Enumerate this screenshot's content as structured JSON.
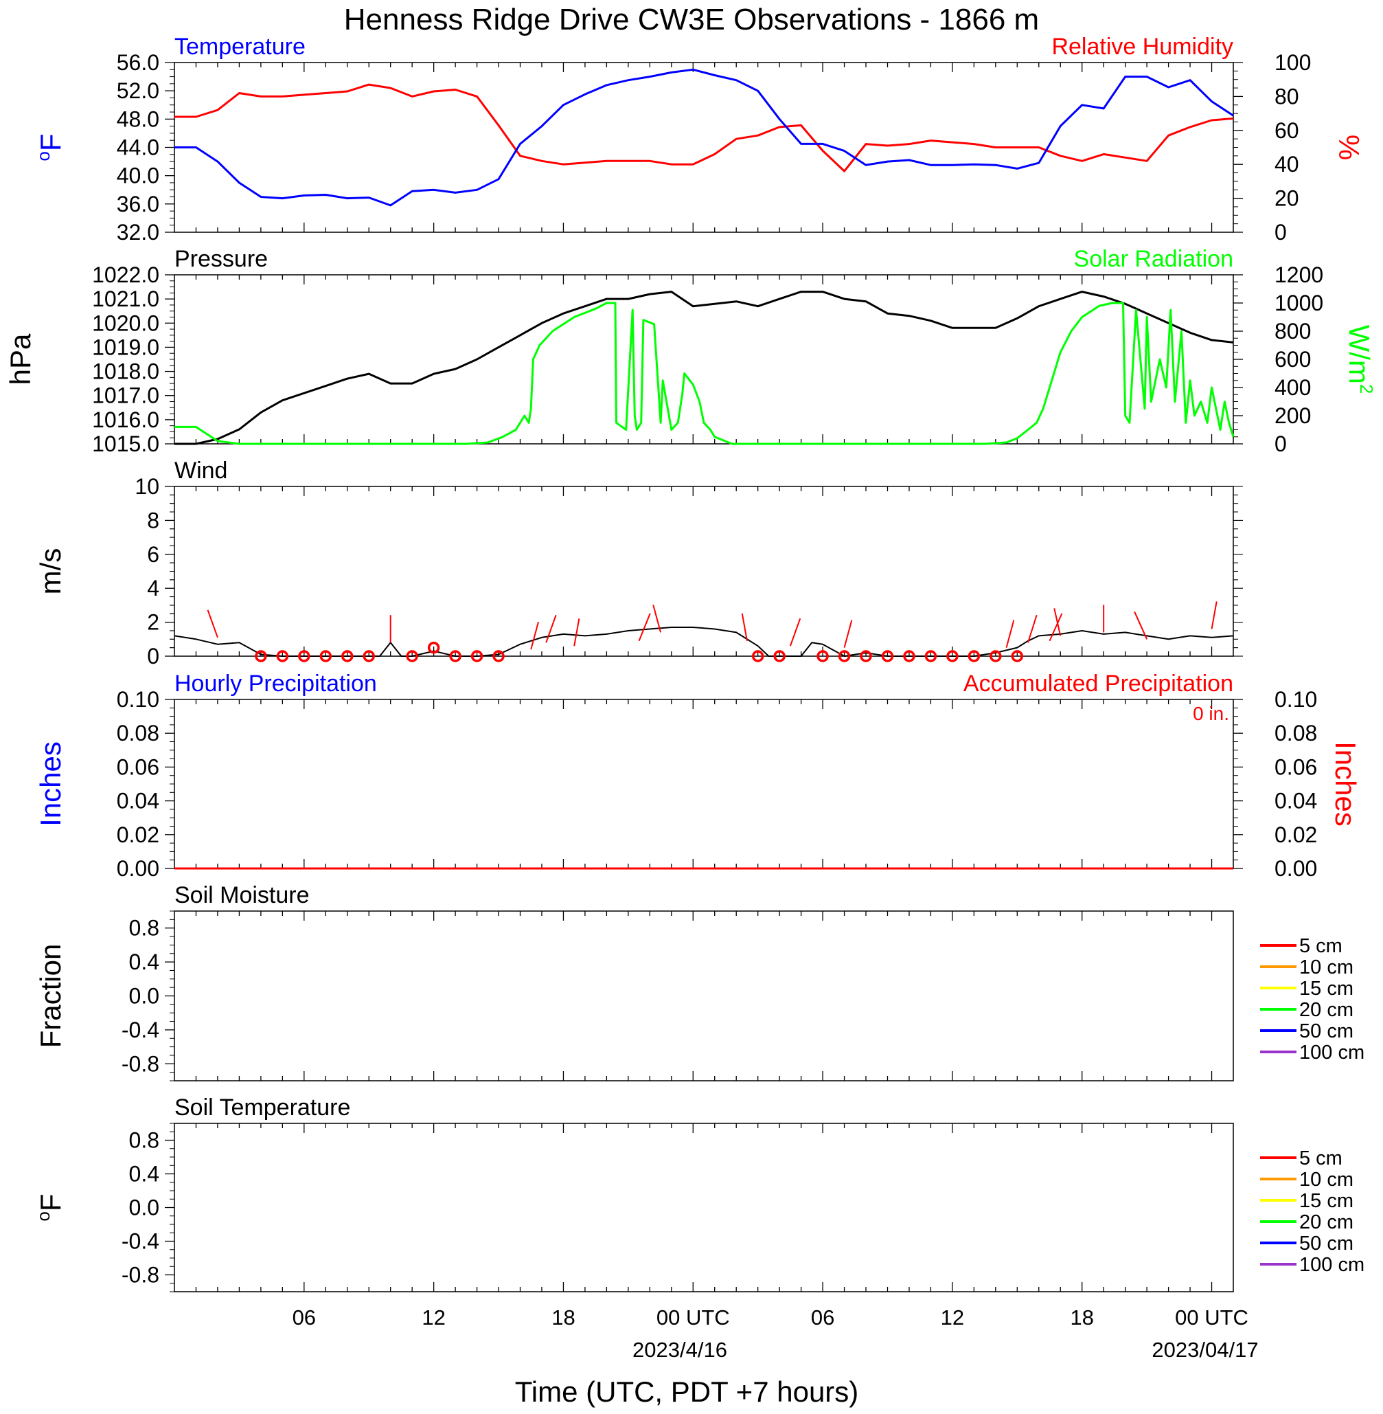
{
  "title": "Henness Ridge Drive CW3E Observations - 1866 m",
  "xaxis": {
    "label": "Time (UTC, PDT +7 hours)",
    "tick_labels": [
      "06",
      "12",
      "18",
      "00 UTC",
      "06",
      "12",
      "18",
      "00 UTC"
    ],
    "date_labels": [
      "2023/4/16",
      "2023/04/17"
    ]
  },
  "colors": {
    "temperature": "#0000ff",
    "humidity": "#ff0000",
    "pressure": "#000000",
    "solar": "#00ff00",
    "wind": "#000000",
    "wind_barb": "#ff0000",
    "precip_hourly": "#0000ff",
    "precip_accum": "#ff0000"
  },
  "soil_legend": [
    {
      "label": "5 cm",
      "color": "#ff0000"
    },
    {
      "label": "10 cm",
      "color": "#ff9900"
    },
    {
      "label": "15 cm",
      "color": "#ffff00"
    },
    {
      "label": "20 cm",
      "color": "#00ff00"
    },
    {
      "label": "50 cm",
      "color": "#0000ff"
    },
    {
      "label": "100 cm",
      "color": "#9933cc"
    }
  ],
  "chart_data": [
    {
      "type": "line",
      "title_left": "Temperature",
      "title_right": "Relative Humidity",
      "ylabel_left": "oF",
      "ylabel_right": "%",
      "ylim_left": [
        32,
        56
      ],
      "ylim_right": [
        0,
        100
      ],
      "yticks_left": [
        "56.0",
        "52.0",
        "48.0",
        "44.0",
        "40.0",
        "36.0",
        "32.0"
      ],
      "yticks_right": [
        "100",
        "80",
        "60",
        "40",
        "20",
        "0"
      ],
      "x_hours": [
        1,
        2,
        3,
        4,
        5,
        6,
        7,
        8,
        9,
        10,
        11,
        12,
        13,
        14,
        15,
        16,
        17,
        18,
        19,
        20,
        21,
        22,
        23,
        24,
        25,
        26,
        27,
        28,
        29,
        30,
        31,
        32,
        33,
        34,
        35,
        36,
        37,
        38,
        39,
        40,
        41,
        42,
        43,
        44,
        45,
        46,
        47,
        48,
        49
      ],
      "series": [
        {
          "name": "Temperature",
          "axis": "left",
          "values": [
            44.0,
            42.0,
            39.0,
            37.0,
            36.8,
            37.2,
            37.3,
            36.8,
            36.9,
            35.8,
            37.8,
            38.0,
            37.6,
            38.0,
            39.5,
            44.5,
            47.0,
            50.0,
            51.5,
            52.8,
            53.5,
            54.0,
            54.6,
            55.0,
            54.2,
            53.5,
            52.0,
            48.0,
            44.5,
            44.5,
            43.5,
            41.5,
            42.0,
            42.2,
            41.5,
            41.5,
            41.6,
            41.5,
            41.0,
            41.8,
            47.0,
            50.0,
            49.5,
            54.0,
            54.0,
            52.5,
            53.5,
            50.5,
            48.5
          ]
        },
        {
          "name": "Relative Humidity",
          "axis": "right",
          "values": [
            68,
            72,
            82,
            80,
            80,
            81,
            82,
            83,
            87,
            85,
            80,
            83,
            84,
            80,
            63,
            45,
            42,
            40,
            41,
            42,
            42,
            42,
            40,
            40,
            46,
            55,
            57,
            62,
            63,
            48,
            36,
            52,
            51,
            52,
            54,
            53,
            52,
            50,
            50,
            50,
            45,
            42,
            46,
            44,
            42,
            57,
            62,
            66,
            67
          ]
        }
      ]
    },
    {
      "type": "line",
      "title_left": "Pressure",
      "title_right": "Solar Radiation",
      "ylabel_left": "hPa",
      "ylabel_right": "W/m2",
      "ylim_left": [
        1015,
        1022
      ],
      "ylim_right": [
        0,
        1200
      ],
      "yticks_left": [
        "1022.0",
        "1021.0",
        "1020.0",
        "1019.0",
        "1018.0",
        "1017.0",
        "1016.0",
        "1015.0"
      ],
      "yticks_right": [
        "1200",
        "1000",
        "800",
        "600",
        "400",
        "200",
        "0"
      ],
      "series": [
        {
          "name": "Pressure",
          "axis": "left",
          "x": [
            1,
            2,
            3,
            4,
            5,
            6,
            7,
            8,
            9,
            10,
            11,
            12,
            13,
            14,
            15,
            16,
            17,
            18,
            19,
            20,
            21,
            22,
            23,
            24,
            25,
            26,
            27,
            28,
            29,
            30,
            31,
            32,
            33,
            34,
            35,
            36,
            37,
            38,
            39,
            40,
            41,
            42,
            43,
            44,
            45,
            46,
            47,
            48,
            49
          ],
          "values": [
            1015.0,
            1015.2,
            1015.6,
            1016.3,
            1016.8,
            1017.1,
            1017.4,
            1017.7,
            1017.9,
            1017.5,
            1017.5,
            1017.9,
            1018.1,
            1018.5,
            1019.0,
            1019.5,
            1020.0,
            1020.4,
            1020.7,
            1021.0,
            1021.0,
            1021.2,
            1021.3,
            1020.7,
            1020.8,
            1020.9,
            1020.7,
            1021.0,
            1021.3,
            1021.3,
            1021.0,
            1020.9,
            1020.4,
            1020.3,
            1020.1,
            1019.8,
            1019.8,
            1019.8,
            1020.2,
            1020.7,
            1021.0,
            1021.3,
            1021.1,
            1020.8,
            1020.4,
            1020.0,
            1019.6,
            1019.3,
            1019.2
          ]
        },
        {
          "name": "Solar Radiation",
          "axis": "right",
          "x": [
            1.0,
            2.0,
            3.0,
            6.0,
            13.5,
            14.5,
            15.2,
            15.8,
            16.2,
            16.4,
            16.5,
            16.6,
            16.9,
            17.5,
            18.5,
            19.5,
            20.0,
            20.4,
            20.45,
            20.9,
            21.2,
            21.3,
            21.4,
            21.6,
            21.7,
            22.2,
            22.5,
            22.6,
            23.0,
            23.3,
            23.5,
            23.6,
            24.0,
            24.3,
            24.5,
            24.8,
            25.0,
            25.8,
            26.3,
            26.8,
            27.5,
            37.5,
            38.5,
            39.0,
            39.5,
            39.9,
            40.2,
            40.5,
            41.0,
            41.5,
            42.0,
            42.8,
            43.4,
            43.9,
            44.0,
            44.2,
            44.5,
            44.9,
            45.0,
            45.2,
            45.6,
            45.9,
            46.1,
            46.3,
            46.6,
            46.8,
            47.0,
            47.2,
            47.5,
            47.8,
            48.0,
            48.2,
            48.4,
            48.6,
            48.8,
            49.0
          ],
          "values": [
            120,
            20,
            0,
            0,
            0,
            10,
            50,
            100,
            200,
            150,
            250,
            600,
            700,
            800,
            900,
            960,
            1000,
            1000,
            150,
            100,
            950,
            200,
            100,
            150,
            880,
            850,
            150,
            450,
            100,
            150,
            350,
            500,
            420,
            300,
            150,
            100,
            50,
            0,
            0,
            0,
            0,
            0,
            10,
            40,
            100,
            150,
            250,
            400,
            650,
            800,
            900,
            980,
            1000,
            1000,
            200,
            150,
            950,
            250,
            900,
            300,
            600,
            400,
            950,
            300,
            800,
            150,
            450,
            200,
            300,
            150,
            400,
            250,
            100,
            300,
            150,
            50
          ]
        }
      ]
    },
    {
      "type": "line",
      "title_left": "Wind",
      "ylabel_left": "m/s",
      "ylim_left": [
        0,
        10
      ],
      "yticks_left": [
        "10",
        "8",
        "6",
        "4",
        "2",
        "0"
      ],
      "series": [
        {
          "name": "Wind",
          "x": [
            1,
            2,
            3,
            4,
            5,
            9.5,
            10,
            10.5,
            11,
            12,
            13,
            14,
            15,
            15.5,
            16,
            17,
            18,
            19,
            20,
            21,
            22,
            23,
            24,
            25,
            26,
            27,
            27.5,
            28,
            29,
            29.5,
            30,
            31,
            32,
            33,
            37,
            38,
            39,
            39.5,
            40,
            41,
            42,
            43,
            44,
            45,
            46,
            47,
            48,
            49
          ],
          "values": [
            1.0,
            0.7,
            0.8,
            0.1,
            0.0,
            0.0,
            0.8,
            0.0,
            0.0,
            0.3,
            0.0,
            0.0,
            0.1,
            0.4,
            0.7,
            1.1,
            1.3,
            1.2,
            1.3,
            1.5,
            1.6,
            1.7,
            1.7,
            1.6,
            1.4,
            0.6,
            0.0,
            0.0,
            0.0,
            0.8,
            0.7,
            0.0,
            0.2,
            0.0,
            0.0,
            0.2,
            0.5,
            0.9,
            1.2,
            1.3,
            1.5,
            1.3,
            1.4,
            1.2,
            1.0,
            1.2,
            1.1,
            1.2
          ]
        },
        {
          "name": "Calm",
          "x": [
            4,
            5,
            6,
            7,
            8,
            9,
            11,
            12,
            13,
            14,
            15,
            27,
            28,
            30,
            31,
            32,
            33,
            34,
            35,
            36,
            37,
            38,
            39
          ],
          "values": [
            0,
            0,
            0,
            0,
            0,
            0,
            0,
            0.5,
            0,
            0,
            0,
            0,
            0,
            0,
            0,
            0,
            0,
            0,
            0,
            0,
            0,
            0,
            0
          ]
        }
      ]
    },
    {
      "type": "line",
      "title_left": "Hourly Precipitation",
      "title_right": "Accumulated Precipitation",
      "annotation": "0 in.",
      "ylabel_left": "Inches",
      "ylabel_right": "Inches",
      "ylim_left": [
        0,
        0.1
      ],
      "ylim_right": [
        0,
        0.1
      ],
      "yticks_left": [
        "0.10",
        "0.08",
        "0.06",
        "0.04",
        "0.02",
        "0.00"
      ],
      "yticks_right": [
        "0.10",
        "0.08",
        "0.06",
        "0.04",
        "0.02",
        "0.00"
      ],
      "series": [
        {
          "name": "Hourly Precipitation",
          "x": [
            0,
            49
          ],
          "values": [
            0,
            0
          ]
        },
        {
          "name": "Accumulated Precipitation",
          "x": [
            0,
            49
          ],
          "values": [
            0,
            0
          ]
        }
      ]
    },
    {
      "type": "line",
      "title_left": "Soil Moisture",
      "ylabel_left": "Fraction",
      "ylim_left": [
        -1,
        1
      ],
      "yticks_left": [
        "0.8",
        "0.4",
        "0.0",
        "-0.4",
        "-0.8"
      ],
      "series": []
    },
    {
      "type": "line",
      "title_left": "Soil Temperature",
      "ylabel_left": "oF",
      "ylim_left": [
        -1,
        1
      ],
      "yticks_left": [
        "0.8",
        "0.4",
        "0.0",
        "-0.4",
        "-0.8"
      ],
      "series": []
    }
  ]
}
